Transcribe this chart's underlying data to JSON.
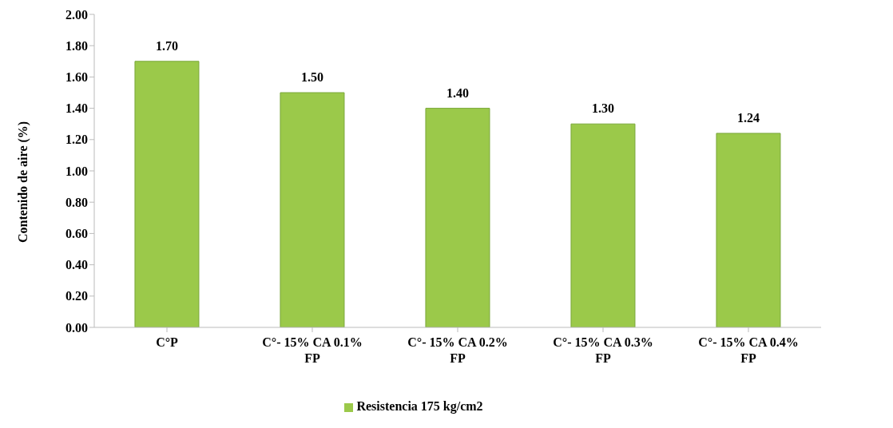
{
  "chart_data": {
    "type": "bar",
    "ylabel": "Contenido de aire (%)",
    "categories": [
      "C°P",
      "C°- 15% CA 0.1% FP",
      "C°- 15% CA 0.2% FP",
      "C°- 15% CA 0.3% FP",
      "C°- 15% CA 0.4% FP"
    ],
    "series": [
      {
        "name": "Resistencia 175 kg/cm2",
        "color": "#9bc94a",
        "values": [
          1.7,
          1.5,
          1.4,
          1.3,
          1.24
        ],
        "value_labels": [
          "1.70",
          "1.50",
          "1.40",
          "1.30",
          "1.24"
        ]
      }
    ],
    "ylim": [
      0,
      2
    ],
    "yticks": [
      {
        "value": 0,
        "label": "0.00"
      },
      {
        "value": 0.2,
        "label": "0.20"
      },
      {
        "value": 0.4,
        "label": "0.40"
      },
      {
        "value": 0.6,
        "label": "0.60"
      },
      {
        "value": 0.8,
        "label": "0.80"
      },
      {
        "value": 1,
        "label": "1.00"
      },
      {
        "value": 1.2,
        "label": "1.20"
      },
      {
        "value": 1.4,
        "label": "1.40"
      },
      {
        "value": 1.6,
        "label": "1.60"
      },
      {
        "value": 1.8,
        "label": "1.80"
      },
      {
        "value": 2,
        "label": "2.00"
      }
    ],
    "grid": false,
    "legend": "bottom"
  }
}
